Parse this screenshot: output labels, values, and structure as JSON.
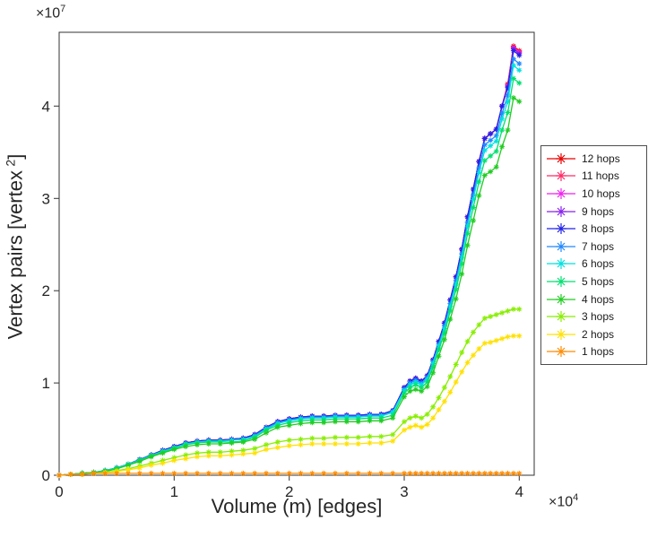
{
  "axes": {
    "xlabel": "Volume (m) [edges]",
    "ylabel_prefix": "Vertex pairs [vertex",
    "ylabel_sup": "2",
    "ylabel_suffix": "]",
    "x_multiplier_base": "×10",
    "x_multiplier_exp": "4",
    "y_multiplier_base": "×10",
    "y_multiplier_exp": "7",
    "x_ticks": [
      "0",
      "1",
      "2",
      "3",
      "4"
    ],
    "y_ticks": [
      "0",
      "1",
      "2",
      "3",
      "4"
    ],
    "axis_color": "#333333",
    "text_color": "#262626"
  },
  "chart_data": {
    "type": "line",
    "title": "",
    "xlabel": "Volume (m) [edges]",
    "ylabel": "Vertex pairs [vertex^2]",
    "x_scale": 10000,
    "y_scale": 10000000,
    "xlim": [
      0,
      4.13
    ],
    "ylim": [
      0,
      4.8
    ],
    "grid": false,
    "legend_position": "right-outside",
    "marker": "asterisk",
    "x": [
      0,
      0.1,
      0.2,
      0.3,
      0.4,
      0.5,
      0.6,
      0.7,
      0.8,
      0.9,
      1,
      1.1,
      1.2,
      1.3,
      1.4,
      1.5,
      1.6,
      1.7,
      1.8,
      1.9,
      2,
      2.1,
      2.2,
      2.3,
      2.4,
      2.5,
      2.6,
      2.7,
      2.8,
      2.9,
      3,
      3.05,
      3.1,
      3.15,
      3.2,
      3.25,
      3.3,
      3.35,
      3.4,
      3.45,
      3.5,
      3.55,
      3.6,
      3.65,
      3.7,
      3.75,
      3.8,
      3.85,
      3.9,
      3.95,
      4
    ],
    "series": [
      {
        "name": "12 hops",
        "color": "#e60000",
        "values": [
          0,
          0.01,
          0.02,
          0.03,
          0.05,
          0.08,
          0.12,
          0.17,
          0.22,
          0.27,
          0.31,
          0.35,
          0.37,
          0.38,
          0.38,
          0.39,
          0.4,
          0.44,
          0.52,
          0.58,
          0.61,
          0.63,
          0.64,
          0.64,
          0.65,
          0.65,
          0.65,
          0.66,
          0.66,
          0.7,
          0.95,
          1.02,
          1.05,
          1.02,
          1.08,
          1.25,
          1.45,
          1.65,
          1.9,
          2.15,
          2.45,
          2.8,
          3.1,
          3.4,
          3.65,
          3.7,
          3.75,
          4,
          4.24,
          4.65,
          4.6
        ]
      },
      {
        "name": "11 hops",
        "color": "#ff2a68",
        "values": [
          0,
          0.01,
          0.02,
          0.03,
          0.05,
          0.08,
          0.12,
          0.17,
          0.22,
          0.27,
          0.31,
          0.35,
          0.37,
          0.38,
          0.38,
          0.39,
          0.4,
          0.44,
          0.52,
          0.58,
          0.61,
          0.63,
          0.64,
          0.64,
          0.65,
          0.65,
          0.65,
          0.66,
          0.66,
          0.7,
          0.95,
          1.02,
          1.05,
          1.02,
          1.08,
          1.25,
          1.45,
          1.65,
          1.9,
          2.15,
          2.45,
          2.8,
          3.1,
          3.4,
          3.65,
          3.7,
          3.75,
          4,
          4.23,
          4.64,
          4.59
        ]
      },
      {
        "name": "10 hops",
        "color": "#ee22ee",
        "values": [
          0,
          0.01,
          0.02,
          0.03,
          0.05,
          0.08,
          0.12,
          0.17,
          0.22,
          0.27,
          0.31,
          0.35,
          0.37,
          0.38,
          0.38,
          0.39,
          0.4,
          0.44,
          0.52,
          0.58,
          0.61,
          0.63,
          0.64,
          0.64,
          0.65,
          0.65,
          0.65,
          0.66,
          0.66,
          0.7,
          0.95,
          1.02,
          1.05,
          1.02,
          1.08,
          1.25,
          1.45,
          1.65,
          1.9,
          2.15,
          2.45,
          2.8,
          3.1,
          3.4,
          3.65,
          3.7,
          3.75,
          4,
          4.22,
          4.63,
          4.58
        ]
      },
      {
        "name": "9 hops",
        "color": "#8822ee",
        "values": [
          0,
          0.01,
          0.02,
          0.03,
          0.05,
          0.08,
          0.12,
          0.17,
          0.22,
          0.27,
          0.31,
          0.35,
          0.37,
          0.38,
          0.38,
          0.39,
          0.4,
          0.44,
          0.52,
          0.58,
          0.61,
          0.63,
          0.64,
          0.64,
          0.65,
          0.65,
          0.65,
          0.66,
          0.66,
          0.7,
          0.95,
          1.02,
          1.05,
          1.02,
          1.08,
          1.25,
          1.45,
          1.65,
          1.9,
          2.15,
          2.45,
          2.8,
          3.1,
          3.4,
          3.65,
          3.7,
          3.75,
          4,
          4.21,
          4.62,
          4.57
        ]
      },
      {
        "name": "8 hops",
        "color": "#2222e6",
        "values": [
          0,
          0.01,
          0.02,
          0.03,
          0.05,
          0.08,
          0.12,
          0.17,
          0.22,
          0.27,
          0.31,
          0.35,
          0.37,
          0.38,
          0.38,
          0.39,
          0.4,
          0.44,
          0.52,
          0.58,
          0.61,
          0.63,
          0.64,
          0.64,
          0.65,
          0.65,
          0.65,
          0.66,
          0.66,
          0.7,
          0.95,
          1.02,
          1.05,
          1.02,
          1.08,
          1.25,
          1.45,
          1.65,
          1.9,
          2.15,
          2.45,
          2.8,
          3.1,
          3.4,
          3.65,
          3.7,
          3.75,
          4,
          4.2,
          4.6,
          4.55
        ]
      },
      {
        "name": "7 hops",
        "color": "#2288ff",
        "values": [
          0,
          0.01,
          0.02,
          0.03,
          0.05,
          0.08,
          0.12,
          0.17,
          0.22,
          0.26,
          0.3,
          0.34,
          0.36,
          0.37,
          0.37,
          0.38,
          0.39,
          0.43,
          0.51,
          0.57,
          0.6,
          0.62,
          0.63,
          0.63,
          0.64,
          0.64,
          0.64,
          0.65,
          0.65,
          0.69,
          0.93,
          1,
          1.03,
          1,
          1.06,
          1.23,
          1.42,
          1.62,
          1.86,
          2.11,
          2.4,
          2.74,
          3.04,
          3.33,
          3.58,
          3.63,
          3.68,
          3.92,
          4.12,
          4.51,
          4.46
        ]
      },
      {
        "name": "6 hops",
        "color": "#00e0e0",
        "values": [
          0,
          0.01,
          0.02,
          0.03,
          0.05,
          0.08,
          0.12,
          0.16,
          0.21,
          0.26,
          0.3,
          0.34,
          0.36,
          0.37,
          0.37,
          0.38,
          0.39,
          0.42,
          0.5,
          0.56,
          0.59,
          0.61,
          0.62,
          0.62,
          0.63,
          0.63,
          0.63,
          0.64,
          0.64,
          0.68,
          0.92,
          0.98,
          1.01,
          0.98,
          1.04,
          1.21,
          1.4,
          1.59,
          1.83,
          2.07,
          2.36,
          2.7,
          2.99,
          3.28,
          3.52,
          3.57,
          3.62,
          3.86,
          4.05,
          4.44,
          4.39
        ]
      },
      {
        "name": "5 hops",
        "color": "#00e070",
        "values": [
          0,
          0.01,
          0.02,
          0.03,
          0.05,
          0.07,
          0.11,
          0.16,
          0.21,
          0.25,
          0.29,
          0.33,
          0.35,
          0.36,
          0.36,
          0.36,
          0.37,
          0.41,
          0.49,
          0.54,
          0.57,
          0.59,
          0.6,
          0.6,
          0.61,
          0.61,
          0.61,
          0.62,
          0.62,
          0.65,
          0.89,
          0.95,
          0.98,
          0.95,
          1.01,
          1.17,
          1.36,
          1.54,
          1.78,
          2.01,
          2.29,
          2.62,
          2.9,
          3.18,
          3.41,
          3.46,
          3.51,
          3.74,
          3.93,
          4.3,
          4.25
        ]
      },
      {
        "name": "4 hops",
        "color": "#22cc22",
        "values": [
          0,
          0.01,
          0.02,
          0.03,
          0.04,
          0.07,
          0.11,
          0.15,
          0.2,
          0.24,
          0.28,
          0.31,
          0.33,
          0.34,
          0.34,
          0.35,
          0.36,
          0.39,
          0.46,
          0.52,
          0.54,
          0.56,
          0.57,
          0.57,
          0.58,
          0.58,
          0.58,
          0.59,
          0.59,
          0.62,
          0.85,
          0.91,
          0.93,
          0.91,
          0.96,
          1.11,
          1.29,
          1.47,
          1.69,
          1.91,
          2.18,
          2.49,
          2.76,
          3.03,
          3.25,
          3.29,
          3.34,
          3.56,
          3.74,
          4.09,
          4.05
        ]
      },
      {
        "name": "3 hops",
        "color": "#88ee00",
        "values": [
          0,
          0.01,
          0.01,
          0.02,
          0.03,
          0.05,
          0.07,
          0.1,
          0.13,
          0.16,
          0.19,
          0.22,
          0.24,
          0.25,
          0.25,
          0.26,
          0.27,
          0.29,
          0.33,
          0.36,
          0.38,
          0.39,
          0.4,
          0.4,
          0.41,
          0.41,
          0.41,
          0.42,
          0.42,
          0.44,
          0.58,
          0.62,
          0.64,
          0.62,
          0.66,
          0.74,
          0.84,
          0.95,
          1.07,
          1.2,
          1.33,
          1.45,
          1.55,
          1.63,
          1.7,
          1.72,
          1.74,
          1.76,
          1.78,
          1.8,
          1.8
        ]
      },
      {
        "name": "2 hops",
        "color": "#ffe100",
        "values": [
          0,
          0.01,
          0.01,
          0.02,
          0.03,
          0.04,
          0.06,
          0.08,
          0.11,
          0.13,
          0.16,
          0.18,
          0.2,
          0.21,
          0.21,
          0.22,
          0.23,
          0.24,
          0.28,
          0.3,
          0.32,
          0.33,
          0.34,
          0.34,
          0.34,
          0.34,
          0.34,
          0.35,
          0.35,
          0.37,
          0.49,
          0.52,
          0.54,
          0.52,
          0.55,
          0.62,
          0.71,
          0.8,
          0.9,
          1.01,
          1.12,
          1.22,
          1.3,
          1.37,
          1.43,
          1.44,
          1.46,
          1.48,
          1.5,
          1.51,
          1.51
        ]
      },
      {
        "name": "1 hops",
        "color": "#ff8c00",
        "values": [
          0,
          0.01,
          0.01,
          0.02,
          0.02,
          0.02,
          0.02,
          0.02,
          0.02,
          0.02,
          0.02,
          0.02,
          0.02,
          0.02,
          0.02,
          0.02,
          0.02,
          0.02,
          0.02,
          0.02,
          0.02,
          0.02,
          0.02,
          0.02,
          0.02,
          0.02,
          0.02,
          0.02,
          0.02,
          0.02,
          0.02,
          0.02,
          0.02,
          0.02,
          0.02,
          0.02,
          0.02,
          0.02,
          0.02,
          0.02,
          0.02,
          0.02,
          0.02,
          0.02,
          0.02,
          0.02,
          0.02,
          0.02,
          0.02,
          0.02,
          0.02
        ]
      }
    ]
  }
}
